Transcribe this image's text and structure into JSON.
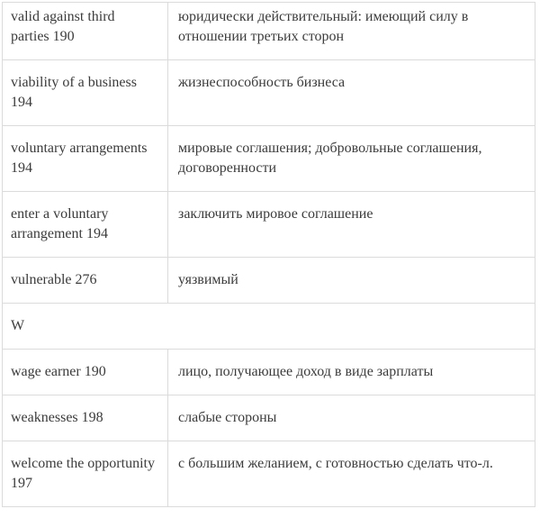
{
  "colors": {
    "background": "#ffffff",
    "border": "#dbdbdb",
    "text": "#3b3b3b"
  },
  "glossary": {
    "rows": [
      {
        "term": "valid against third parties 190",
        "translation": "юридически действительный: имеющий силу в отношении третьих сторон"
      },
      {
        "term": "viability of a business 194",
        "translation": "жизнеспособность бизнеса"
      },
      {
        "term": "voluntary arrangements 194",
        "translation": "мировые соглашения; добровольные соглашения, договоренности"
      },
      {
        "term": "enter a voluntary arrangement 194",
        "translation": "заключить мировое соглашение"
      },
      {
        "term": "vulnerable 276",
        "translation": "уязвимый"
      },
      {
        "section_letter": "W"
      },
      {
        "term": "wage earner 190",
        "translation": "лицо, получающее доход в виде зарплаты"
      },
      {
        "term": "weaknesses 198",
        "translation": "слабые стороны"
      },
      {
        "term": "welcome the opportunity 197",
        "translation": "с большим желанием, с готовностью сделать что-л."
      }
    ]
  }
}
